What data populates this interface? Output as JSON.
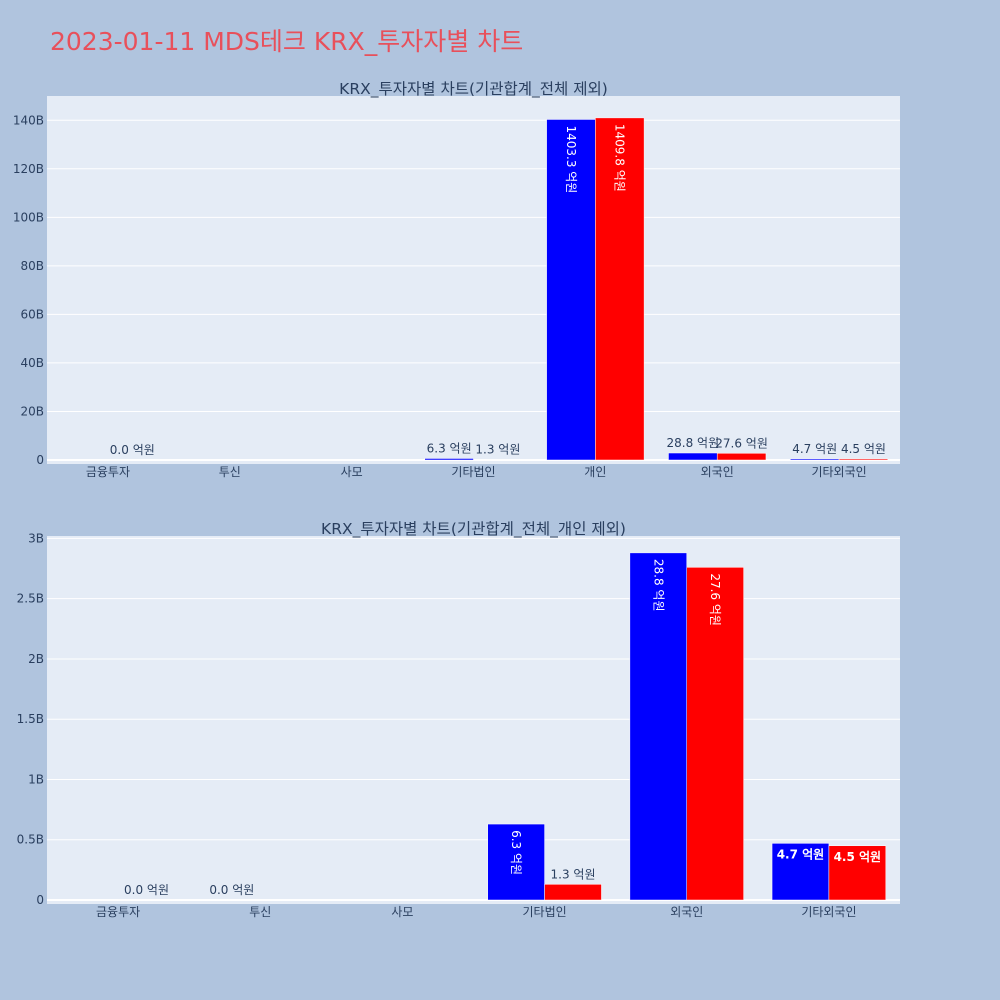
{
  "title": "2023-01-11 MDS테크 KRX_투자자별 차트",
  "colors": {
    "buy": "#0000ff",
    "sell": "#ff0000",
    "plot_bg": "#e5ecf6",
    "page_bg": "#b0c4de"
  },
  "chart_data": [
    {
      "type": "bar",
      "title": "KRX_투자자별 차트(기관합계_전체 제외)",
      "categories": [
        "금융투자",
        "투신",
        "사모",
        "기타법인",
        "개인",
        "외국인",
        "기타외국인"
      ],
      "ylim": [
        0,
        150000000000
      ],
      "yticks": [
        0,
        20000000000,
        40000000000,
        60000000000,
        80000000000,
        100000000000,
        120000000000,
        140000000000
      ],
      "ytick_labels": [
        "0",
        "20B",
        "40B",
        "60B",
        "80B",
        "100B",
        "120B",
        "140B"
      ],
      "grid": true,
      "series": [
        {
          "color": "#0000ff",
          "values": [
            0,
            0,
            0,
            630000000,
            140330000000,
            2880000000,
            470000000
          ],
          "labels": [
            "",
            "",
            "",
            "6.3 억원",
            "1403.3 억원",
            "28.8 억원",
            "4.7 억원"
          ]
        },
        {
          "color": "#ff0000",
          "values": [
            2000000,
            0,
            0,
            130000000,
            140980000000,
            2760000000,
            450000000
          ],
          "labels": [
            "0.0 억원",
            "",
            "",
            "1.3 억원",
            "1409.8 억원",
            "27.6 억원",
            "4.5 억원"
          ]
        }
      ]
    },
    {
      "type": "bar",
      "title": "KRX_투자자별 차트(기관합계_전체_개인 제외)",
      "categories": [
        "금융투자",
        "투신",
        "사모",
        "기타법인",
        "외국인",
        "기타외국인"
      ],
      "ylim": [
        0,
        3020000000
      ],
      "yticks": [
        0,
        500000000,
        1000000000,
        1500000000,
        2000000000,
        2500000000,
        3000000000
      ],
      "ytick_labels": [
        "0",
        "0.5B",
        "1B",
        "1.5B",
        "2B",
        "2.5B",
        "3B"
      ],
      "grid": true,
      "series": [
        {
          "color": "#0000ff",
          "values": [
            0,
            0,
            0,
            630000000,
            2880000000,
            470000000
          ],
          "labels": [
            "",
            "0.0 억원",
            "",
            "6.3 억원",
            "28.8 억원",
            "4.7 억원"
          ]
        },
        {
          "color": "#ff0000",
          "values": [
            2000000,
            0,
            0,
            130000000,
            2760000000,
            450000000
          ],
          "labels": [
            "0.0 억원",
            "",
            "",
            "1.3 억원",
            "27.6 억원",
            "4.5 억원"
          ]
        }
      ]
    }
  ]
}
